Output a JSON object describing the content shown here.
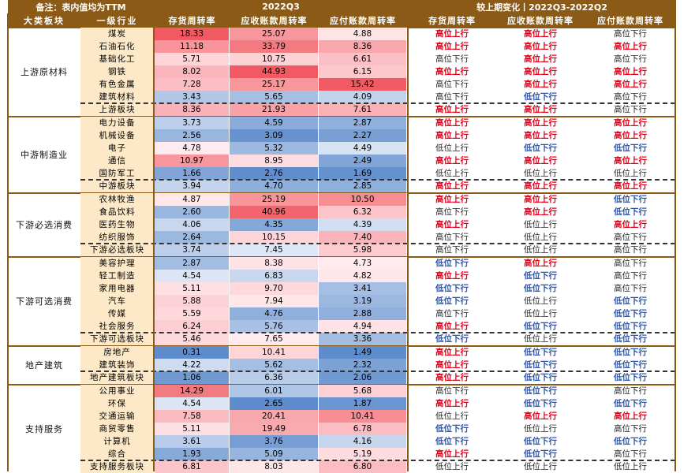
{
  "header": {
    "note": "备注：表内值均为TTM",
    "period_current": "2022Q3",
    "period_change": "较上期变化丨2022Q3-2022Q2",
    "col_group": "大类板块",
    "col_industry": "一级行业",
    "metrics": [
      "存货周转率",
      "应收账款周转率",
      "应付账款周转率"
    ]
  },
  "colors": {
    "header_bg": "#8a5a16",
    "industry_bg": "#fde9c8",
    "high": "#e2001a",
    "low": "#2f55a4"
  },
  "groups": [
    {
      "name": "上游原材料",
      "rows": [
        {
          "ind": "煤炭",
          "v": [
            "18.33",
            "25.07",
            "4.88"
          ],
          "c": [
            "高位上行",
            "高位上行",
            "高位下行"
          ]
        },
        {
          "ind": "石油石化",
          "v": [
            "11.18",
            "33.79",
            "8.36"
          ],
          "c": [
            "高位上行",
            "高位上行",
            "高位上行"
          ]
        },
        {
          "ind": "基础化工",
          "v": [
            "5.71",
            "10.75",
            "6.61"
          ],
          "c": [
            "高位下行",
            "高位上行",
            "高位下行"
          ]
        },
        {
          "ind": "钢铁",
          "v": [
            "8.02",
            "44.93",
            "6.15"
          ],
          "c": [
            "高位上行",
            "高位上行",
            "高位上行"
          ]
        },
        {
          "ind": "有色金属",
          "v": [
            "7.28",
            "25.17",
            "15.42"
          ],
          "c": [
            "高位下行",
            "高位上行",
            "高位上行"
          ]
        },
        {
          "ind": "建筑材料",
          "v": [
            "3.43",
            "5.65",
            "4.09"
          ],
          "c": [
            "高位下行",
            "低位下行",
            "高位下行"
          ]
        },
        {
          "ind": "上游板块",
          "v": [
            "8.36",
            "21.93",
            "7.61"
          ],
          "c": [
            "高位上行",
            "高位上行",
            "高位下行"
          ],
          "summary": true
        }
      ]
    },
    {
      "name": "中游制造业",
      "rows": [
        {
          "ind": "电力设备",
          "v": [
            "3.73",
            "4.59",
            "2.87"
          ],
          "c": [
            "高位上行",
            "高位上行",
            "高位上行"
          ]
        },
        {
          "ind": "机械设备",
          "v": [
            "2.56",
            "3.09",
            "2.27"
          ],
          "c": [
            "高位上行",
            "高位上行",
            "高位上行"
          ]
        },
        {
          "ind": "电子",
          "v": [
            "4.78",
            "5.32",
            "4.49"
          ],
          "c": [
            "低位上行",
            "低位下行",
            "低位下行"
          ]
        },
        {
          "ind": "通信",
          "v": [
            "10.97",
            "8.95",
            "2.49"
          ],
          "c": [
            "高位上行",
            "高位上行",
            "高位上行"
          ]
        },
        {
          "ind": "国防军工",
          "v": [
            "1.66",
            "2.76",
            "1.69"
          ],
          "c": [
            "低位上行",
            "低位上行",
            "低位上行"
          ]
        },
        {
          "ind": "中游板块",
          "v": [
            "3.94",
            "4.70",
            "2.85"
          ],
          "c": [
            "高位上行",
            "高位上行",
            "高位上行"
          ],
          "summary": true
        }
      ]
    },
    {
      "name": "下游必选消费",
      "rows": [
        {
          "ind": "农林牧渔",
          "v": [
            "4.87",
            "25.19",
            "10.50"
          ],
          "c": [
            "高位上行",
            "高位上行",
            "低位下行"
          ]
        },
        {
          "ind": "食品饮料",
          "v": [
            "2.60",
            "40.96",
            "6.32"
          ],
          "c": [
            "高位下行",
            "高位上行",
            "低位下行"
          ]
        },
        {
          "ind": "医药生物",
          "v": [
            "4.06",
            "4.35",
            "4.39"
          ],
          "c": [
            "高位上行",
            "低位上行",
            "高位上行"
          ]
        },
        {
          "ind": "纺织服饰",
          "v": [
            "2.64",
            "10.15",
            "7.40"
          ],
          "c": [
            "高位下行",
            "低位上行",
            "高位下行"
          ]
        },
        {
          "ind": "下游必选板块",
          "v": [
            "3.74",
            "7.45",
            "5.98"
          ],
          "c": [
            "高位下行",
            "低位上行",
            "高位下行"
          ],
          "summary": true
        }
      ]
    },
    {
      "name": "下游可选消费",
      "rows": [
        {
          "ind": "美容护理",
          "v": [
            "2.87",
            "8.38",
            "4.73"
          ],
          "c": [
            "低位下行",
            "高位上行",
            "高位下行"
          ]
        },
        {
          "ind": "轻工制造",
          "v": [
            "4.54",
            "6.83",
            "4.82"
          ],
          "c": [
            "高位上行",
            "低位下行",
            "高位下行"
          ]
        },
        {
          "ind": "家用电器",
          "v": [
            "5.11",
            "9.70",
            "3.41"
          ],
          "c": [
            "低位下行",
            "低位下行",
            "高位下行"
          ]
        },
        {
          "ind": "汽车",
          "v": [
            "5.88",
            "7.94",
            "3.19"
          ],
          "c": [
            "低位下行",
            "低位上行",
            "低位下行"
          ]
        },
        {
          "ind": "传媒",
          "v": [
            "5.59",
            "4.76",
            "2.88"
          ],
          "c": [
            "高位下行",
            "低位上行",
            "低位下行"
          ]
        },
        {
          "ind": "社会服务",
          "v": [
            "6.24",
            "5.76",
            "4.94"
          ],
          "c": [
            "高位上行",
            "低位下行",
            "低位下行"
          ]
        },
        {
          "ind": "下游可选板块",
          "v": [
            "5.46",
            "7.65",
            "3.36"
          ],
          "c": [
            "低位下行",
            "低位上行",
            "低位下行"
          ],
          "summary": true
        }
      ]
    },
    {
      "name": "地产建筑",
      "rows": [
        {
          "ind": "房地产",
          "v": [
            "0.31",
            "10.41",
            "1.49"
          ],
          "c": [
            "高位上行",
            "低位下行",
            "低位下行"
          ]
        },
        {
          "ind": "建筑装饰",
          "v": [
            "4.22",
            "5.62",
            "2.32"
          ],
          "c": [
            "高位上行",
            "低位下行",
            "低位下行"
          ]
        },
        {
          "ind": "地产建筑板块",
          "v": [
            "1.06",
            "6.36",
            "2.06"
          ],
          "c": [
            "高位上行",
            "低位下行",
            "低位下行"
          ],
          "summary": true
        }
      ]
    },
    {
      "name": "支持服务",
      "rows": [
        {
          "ind": "公用事业",
          "v": [
            "14.29",
            "6.01",
            "5.68"
          ],
          "c": [
            "高位下行",
            "低位下行",
            "高位下行"
          ]
        },
        {
          "ind": "环保",
          "v": [
            "4.54",
            "2.65",
            "1.87"
          ],
          "c": [
            "高位上行",
            "低位下行",
            "低位下行"
          ]
        },
        {
          "ind": "交通运输",
          "v": [
            "7.58",
            "20.41",
            "10.41"
          ],
          "c": [
            "低位上行",
            "高位上行",
            "高位上行"
          ]
        },
        {
          "ind": "商贸零售",
          "v": [
            "5.11",
            "19.49",
            "6.78"
          ],
          "c": [
            "低位下行",
            "低位上行",
            "高位下行"
          ]
        },
        {
          "ind": "计算机",
          "v": [
            "3.61",
            "3.76",
            "4.16"
          ],
          "c": [
            "低位下行",
            "低位下行",
            "低位下行"
          ]
        },
        {
          "ind": "综合",
          "v": [
            "1.93",
            "5.09",
            "5.19"
          ],
          "c": [
            "高位上行",
            "低位下行",
            "高位下行"
          ]
        },
        {
          "ind": "支持服务板块",
          "v": [
            "6.81",
            "8.03",
            "6.80"
          ],
          "c": [
            "低位上行",
            "低位上行",
            "低位上行"
          ],
          "summary": true
        }
      ]
    }
  ]
}
